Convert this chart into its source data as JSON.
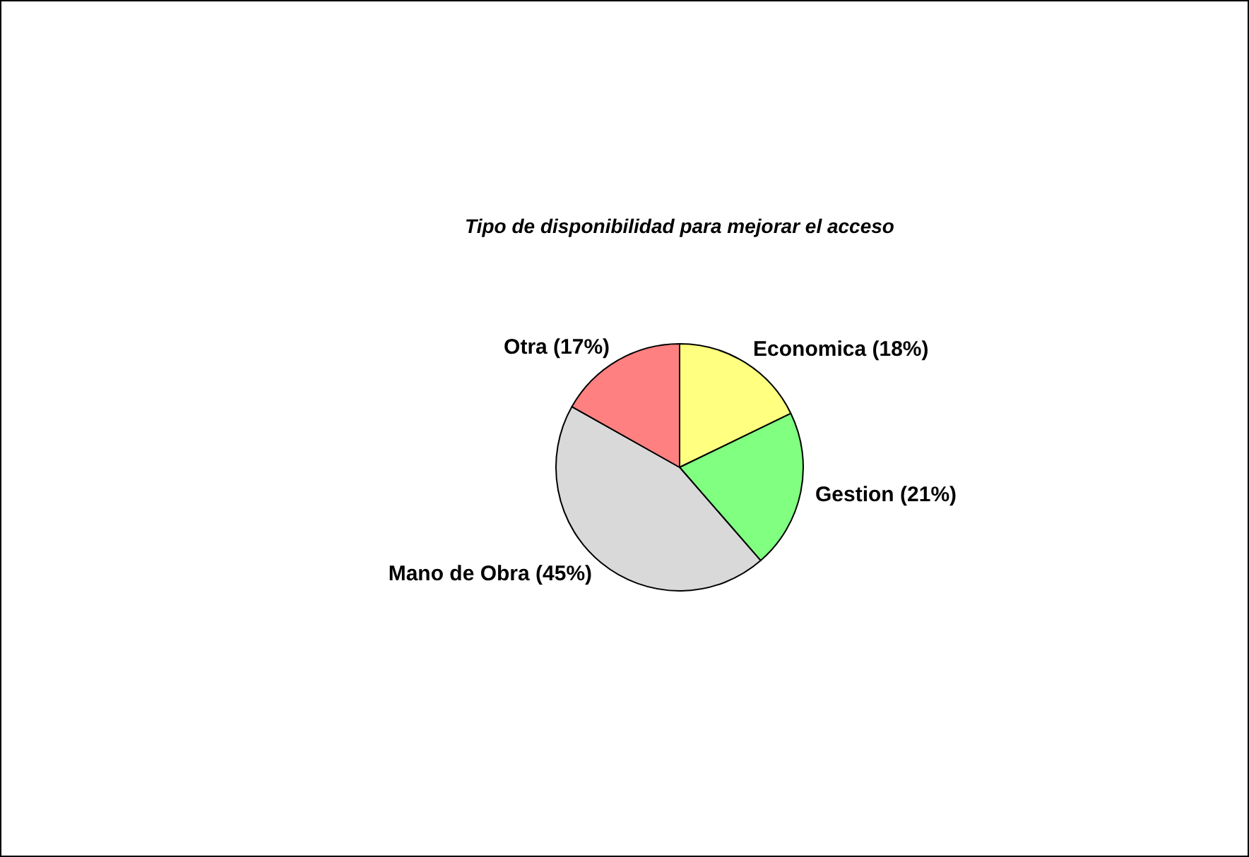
{
  "chart_data": {
    "type": "pie",
    "title": "Tipo de disponibilidad para mejorar el acceso",
    "categories": [
      "Economica (18%)",
      "Gestion (21%)",
      "Mano de Obra (45%)",
      "Otra (17%)"
    ],
    "values": [
      18,
      21,
      45,
      17
    ],
    "colors": [
      "#ffff80",
      "#80ff80",
      "#d9d9d9",
      "#ff8080"
    ],
    "legend": false
  }
}
